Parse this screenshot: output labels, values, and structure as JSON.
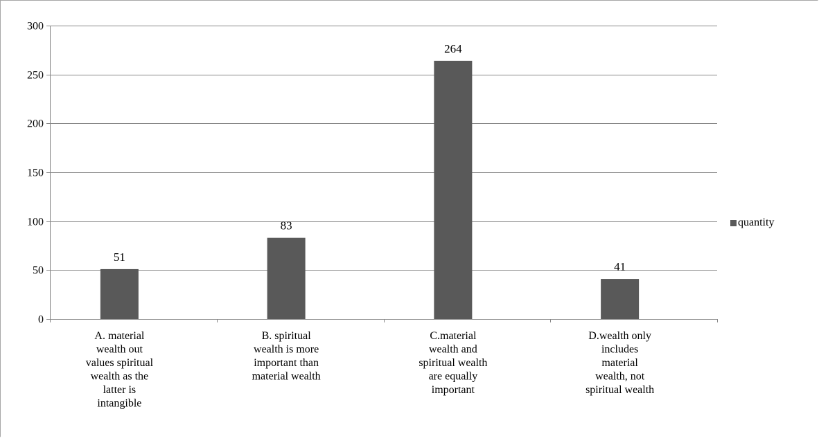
{
  "chart_data": {
    "type": "bar",
    "title": "",
    "xlabel": "",
    "ylabel": "",
    "categories": [
      "A. material wealth out values spiritual wealth as the latter is intangible",
      "B. spiritual wealth is more important than material wealth",
      "C.material wealth and spiritual wealth are equally important",
      "D.wealth only includes material wealth, not spiritual wealth"
    ],
    "category_lines": [
      [
        "A. material",
        "wealth out",
        "values spiritual",
        "wealth as the",
        "latter is",
        "intangible"
      ],
      [
        "B. spiritual",
        "wealth is more",
        "important than",
        "material wealth"
      ],
      [
        "C.material",
        "wealth and",
        "spiritual wealth",
        "are equally",
        "important"
      ],
      [
        "D.wealth only",
        "includes",
        "material",
        "wealth, not",
        "spiritual wealth"
      ]
    ],
    "series": [
      {
        "name": "quantity",
        "values": [
          51,
          83,
          264,
          41
        ],
        "color": "#595959"
      }
    ],
    "data_labels": [
      "51",
      "83",
      "264",
      "41"
    ],
    "ylim": [
      0,
      300
    ],
    "yticks": [
      0,
      50,
      100,
      150,
      200,
      250,
      300
    ],
    "ytick_labels": [
      "0",
      "50",
      "100",
      "150",
      "200",
      "250",
      "300"
    ],
    "grid": true,
    "gridline_color": "#868686",
    "legend_position": "right"
  },
  "legend": {
    "label": "quantity",
    "color": "#595959"
  }
}
